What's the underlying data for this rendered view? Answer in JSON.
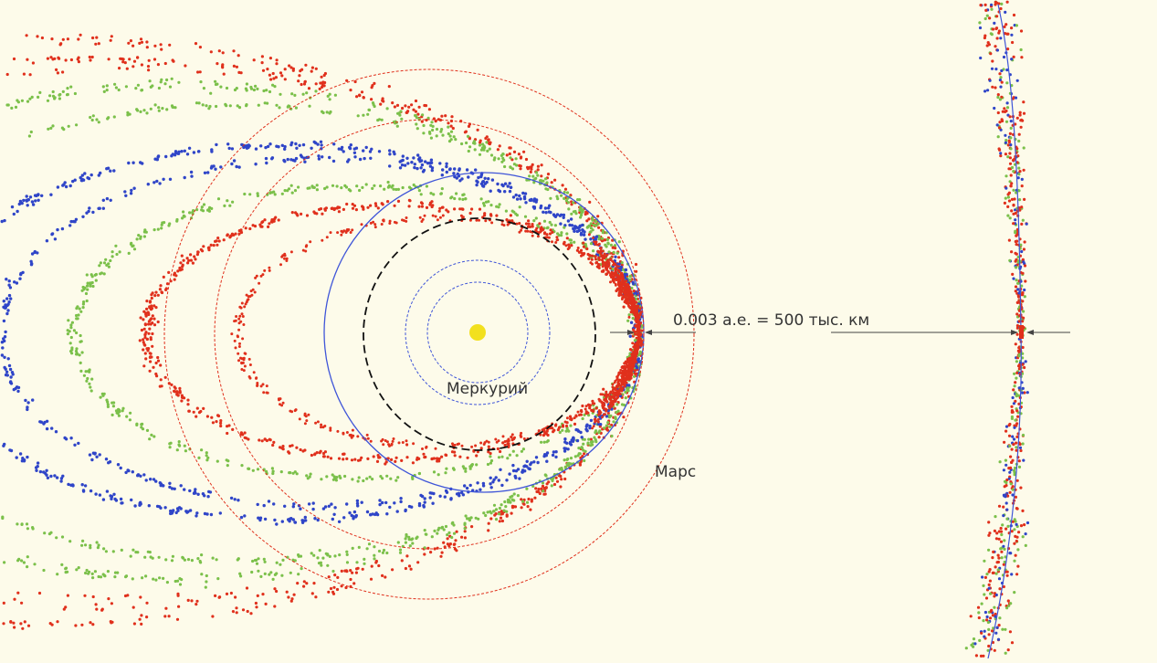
{
  "labels": {
    "mercury": "Меркурий",
    "mars": "Марс",
    "scale": "0.003 а.е. = 500 тыс. км"
  },
  "colors": {
    "background": "#fdfbea",
    "sun": "#f2e01e",
    "red_particles": "#e0301c",
    "green_particles": "#7bc04a",
    "blue_particles": "#2f45c8",
    "blue_orbit": "#3f55d8",
    "red_orbit": "#e0301c",
    "black_orbit": "#111111",
    "arrows": "#444444"
  },
  "icons": {
    "sun": "sun-icon",
    "scale_arrow_left": "arrow-right-icon",
    "scale_arrow_right": "arrow-left-icon",
    "zoom_arrow_left": "arrow-right-icon",
    "zoom_arrow_right": "arrow-left-icon"
  }
}
